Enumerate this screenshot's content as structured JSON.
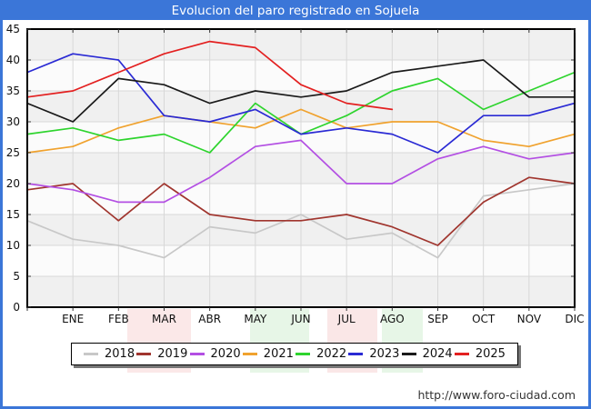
{
  "title": "Evolucion del paro registrado en Sojuela",
  "footer": {
    "url": "http://www.foro-ciudad.com"
  },
  "colors": {
    "frame_blue": "#3b76d8",
    "plot_band_dark": "#f0f0f0",
    "plot_band_light": "#fbfbfb",
    "gridline": "#d8d8d8",
    "plot_border": "#000000",
    "watermark_red": "#e05050",
    "watermark_green": "#50c050"
  },
  "chart_data": {
    "type": "line",
    "title": "Evolucion del paro registrado en Sojuela",
    "xlabel": "",
    "ylabel": "",
    "ylim": [
      0,
      45
    ],
    "y_step": 5,
    "grid": true,
    "legend_position": "bottom",
    "x_labels": [
      "",
      "ENE",
      "FEB",
      "MAR",
      "ABR",
      "MAY",
      "JUN",
      "JUL",
      "AGO",
      "SEP",
      "OCT",
      "NOV",
      "DIC"
    ],
    "series": [
      {
        "name": "2018",
        "color": "#c8c8c8",
        "values": [
          14,
          11,
          10,
          8,
          13,
          12,
          15,
          11,
          12,
          8,
          18,
          19,
          20
        ]
      },
      {
        "name": "2019",
        "color": "#a0352e",
        "values": [
          19,
          20,
          14,
          20,
          15,
          14,
          14,
          15,
          13,
          10,
          17,
          21,
          20
        ]
      },
      {
        "name": "2020",
        "color": "#b34fe3",
        "values": [
          20,
          19,
          17,
          17,
          21,
          26,
          27,
          20,
          20,
          24,
          26,
          24,
          25
        ]
      },
      {
        "name": "2021",
        "color": "#f0a22e",
        "values": [
          25,
          26,
          29,
          31,
          30,
          29,
          32,
          29,
          30,
          30,
          27,
          26,
          28
        ]
      },
      {
        "name": "2022",
        "color": "#2ed42e",
        "values": [
          28,
          29,
          27,
          28,
          25,
          33,
          28,
          31,
          35,
          37,
          32,
          35,
          38
        ]
      },
      {
        "name": "2023",
        "color": "#2a2ad4",
        "values": [
          38,
          41,
          40,
          31,
          30,
          32,
          28,
          29,
          28,
          25,
          31,
          31,
          33
        ]
      },
      {
        "name": "2024",
        "color": "#1a1a1a",
        "values": [
          33,
          30,
          37,
          36,
          33,
          35,
          34,
          35,
          38,
          39,
          40,
          34,
          34
        ]
      },
      {
        "name": "2025",
        "color": "#e32020",
        "values": [
          34,
          35,
          38,
          41,
          43,
          42,
          36,
          33,
          32
        ]
      }
    ]
  }
}
